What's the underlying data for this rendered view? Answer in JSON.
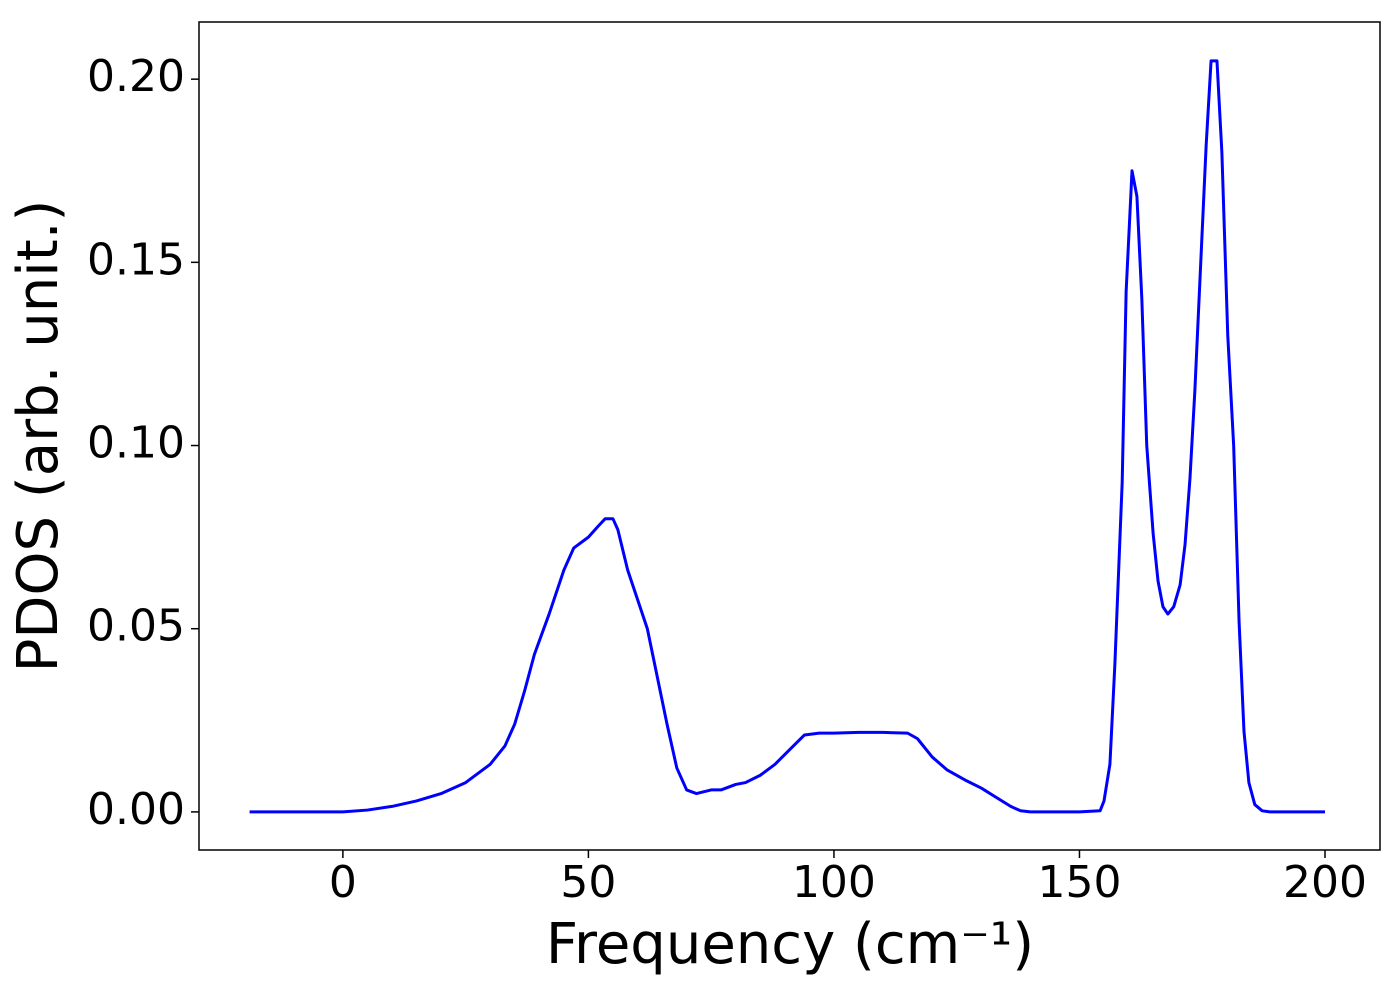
{
  "chart_data": {
    "type": "line",
    "xlabel": "Frequency (cm⁻¹)",
    "ylabel": "PDOS (arb. unit.)",
    "series": [
      {
        "color": "#0000ff",
        "x": [
          -19,
          0,
          5,
          10,
          15,
          20,
          25,
          30,
          33,
          35,
          37,
          39,
          42,
          45,
          47,
          50,
          52,
          53.4,
          55,
          56,
          58,
          60,
          62,
          64,
          66,
          68,
          70,
          72,
          75,
          77,
          80,
          82,
          85,
          88,
          91,
          94,
          97,
          100,
          105,
          110,
          115,
          117,
          120,
          123,
          127,
          130,
          133,
          136,
          138,
          140,
          150,
          154.2,
          155,
          156.2,
          157.2,
          158.7,
          159.5,
          160.7,
          161.7,
          162.7,
          163.7,
          165,
          166,
          167,
          168,
          169.2,
          170.5,
          171.5,
          172.5,
          173.5,
          174.7,
          175.8,
          176.8,
          178,
          179,
          180.2,
          181.4,
          182.5,
          183.5,
          184.5,
          185.7,
          187.2,
          188.8,
          200
        ],
        "values": [
          0,
          0,
          0.0005,
          0.0015,
          0.003,
          0.005,
          0.008,
          0.013,
          0.018,
          0.024,
          0.033,
          0.043,
          0.054,
          0.066,
          0.072,
          0.075,
          0.078,
          0.08,
          0.08,
          0.077,
          0.066,
          0.058,
          0.05,
          0.037,
          0.024,
          0.012,
          0.006,
          0.005,
          0.006,
          0.006,
          0.0075,
          0.008,
          0.01,
          0.013,
          0.017,
          0.021,
          0.0215,
          0.0215,
          0.0217,
          0.0217,
          0.0215,
          0.02,
          0.015,
          0.0115,
          0.0085,
          0.0065,
          0.004,
          0.0015,
          0.0003,
          0,
          0,
          0.0003,
          0.003,
          0.013,
          0.04,
          0.09,
          0.142,
          0.175,
          0.168,
          0.14,
          0.1,
          0.076,
          0.063,
          0.056,
          0.054,
          0.056,
          0.062,
          0.073,
          0.091,
          0.115,
          0.15,
          0.182,
          0.205,
          0.205,
          0.18,
          0.13,
          0.1,
          0.052,
          0.022,
          0.008,
          0.002,
          0.0003,
          0,
          0
        ]
      }
    ],
    "xlim": [
      -29.3,
      211.2
    ],
    "xticks": [
      0,
      50,
      100,
      150,
      200
    ],
    "ylim": [
      -0.0104,
      0.2156
    ],
    "yticks": [
      {
        "value": 0,
        "label": "0.00"
      },
      0.05,
      {
        "value": 0.1,
        "label": "0.10"
      },
      0.15,
      {
        "value": 0.2,
        "label": "0.20"
      }
    ],
    "grid": false
  }
}
